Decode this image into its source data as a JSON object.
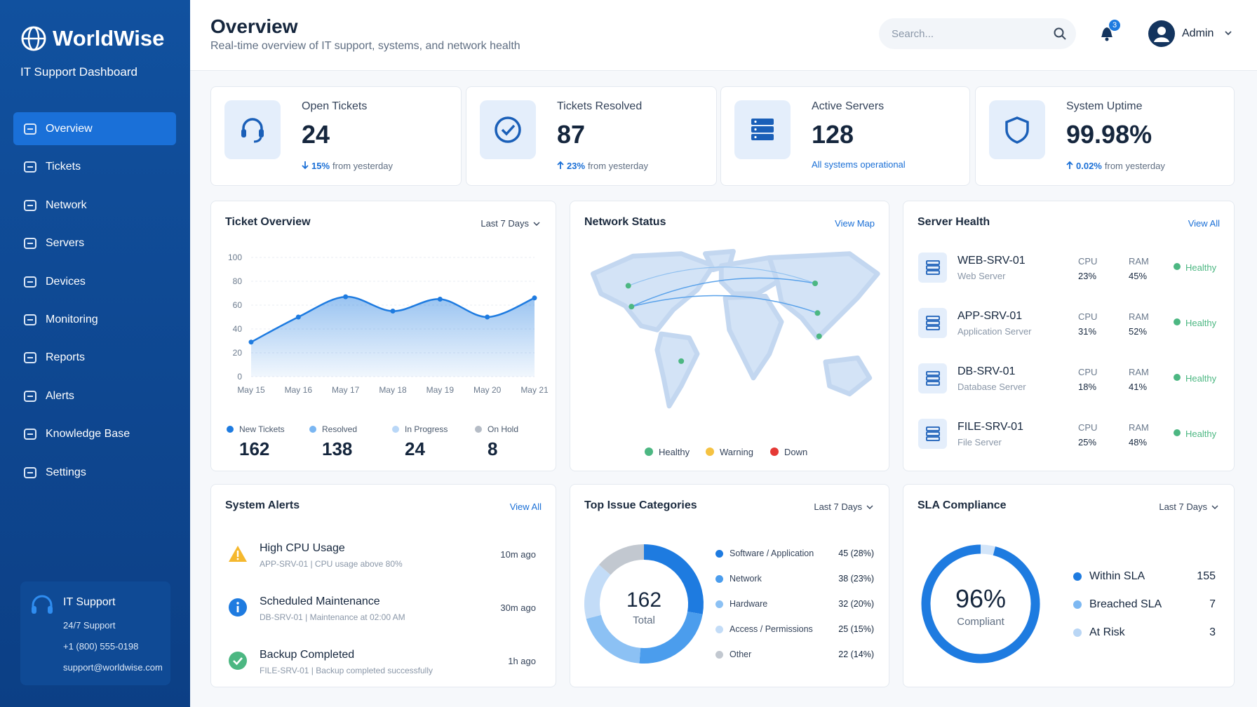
{
  "sidebar": {
    "brand": "WorldWise",
    "subtitle": "IT Support Dashboard",
    "nav": [
      {
        "label": "Overview",
        "active": true
      },
      {
        "label": "Tickets"
      },
      {
        "label": "Network"
      },
      {
        "label": "Servers"
      },
      {
        "label": "Devices"
      },
      {
        "label": "Monitoring"
      },
      {
        "label": "Reports"
      },
      {
        "label": "Alerts"
      },
      {
        "label": "Knowledge Base"
      },
      {
        "label": "Settings"
      }
    ],
    "support": {
      "title": "IT Support",
      "hours": "24/7 Support",
      "phone": "+1 (800) 555-0198",
      "email": "support@worldwise.com"
    }
  },
  "header": {
    "title": "Overview",
    "subtitle": "Real-time overview of IT support, systems, and network health",
    "search_placeholder": "Search...",
    "notifications": 3,
    "user": "Admin"
  },
  "stats": [
    {
      "label": "Open Tickets",
      "value": 24,
      "change": "15%",
      "trend": "down",
      "note": "from yesterday"
    },
    {
      "label": "Tickets Resolved",
      "value": 87,
      "change": "23%",
      "trend": "up",
      "note": "from yesterday"
    },
    {
      "label": "Active Servers",
      "value": 128,
      "note": "All systems operational"
    },
    {
      "label": "System Uptime",
      "value": "99.98%",
      "change": "0.02%",
      "trend": "up",
      "note": "from yesterday"
    }
  ],
  "ticket_overview": {
    "type": "line",
    "title": "Ticket Overview",
    "period": "Last 7 Days",
    "categories": [
      "May 15",
      "May 16",
      "May 17",
      "May 18",
      "May 19",
      "May 20",
      "May 21"
    ],
    "values": [
      29,
      50,
      67,
      55,
      65,
      50,
      66
    ],
    "color": "#1e7be0",
    "ylim": [
      0,
      100
    ],
    "yticks": [
      0,
      20,
      40,
      60,
      80,
      100
    ],
    "grid": true,
    "summary": [
      {
        "name": "New Tickets",
        "value": 162,
        "color": "#1e7be0"
      },
      {
        "name": "Resolved",
        "value": 138,
        "color": "#7ab6f2"
      },
      {
        "name": "In Progress",
        "value": 24,
        "color": "#b9d7f7"
      },
      {
        "name": "On Hold",
        "value": 8,
        "color": "#b5bcc6"
      }
    ]
  },
  "network_status": {
    "title": "Network Status",
    "link": "View Map",
    "legend": [
      {
        "name": "Healthy",
        "color": "#4cb782"
      },
      {
        "name": "Warning",
        "color": "#f5c242"
      },
      {
        "name": "Down",
        "color": "#e53935"
      }
    ]
  },
  "server_health": {
    "title": "Server Health",
    "link": "View All",
    "cpu_label": "CPU",
    "ram_label": "RAM",
    "servers": [
      {
        "name": "WEB-SRV-01",
        "role": "Web Server",
        "cpu": "23%",
        "ram": "45%",
        "status": "Healthy"
      },
      {
        "name": "APP-SRV-01",
        "role": "Application Server",
        "cpu": "31%",
        "ram": "52%",
        "status": "Healthy"
      },
      {
        "name": "DB-SRV-01",
        "role": "Database Server",
        "cpu": "18%",
        "ram": "41%",
        "status": "Healthy"
      },
      {
        "name": "FILE-SRV-01",
        "role": "File Server",
        "cpu": "25%",
        "ram": "48%",
        "status": "Healthy"
      }
    ]
  },
  "system_alerts": {
    "title": "System Alerts",
    "link": "View All",
    "alerts": [
      {
        "level": "warning",
        "title": "High CPU Usage",
        "detail": "APP-SRV-01 | CPU usage above 80%",
        "time": "10m ago"
      },
      {
        "level": "info",
        "title": "Scheduled Maintenance",
        "detail": "DB-SRV-01 | Maintenance at 02:00 AM",
        "time": "30m ago"
      },
      {
        "level": "success",
        "title": "Backup Completed",
        "detail": "FILE-SRV-01 | Backup completed successfully",
        "time": "1h ago"
      }
    ]
  },
  "top_issues": {
    "type": "pie",
    "title": "Top Issue Categories",
    "period": "Last 7 Days",
    "total": 162,
    "total_label": "Total",
    "categories": [
      "Software / Application",
      "Network",
      "Hardware",
      "Access / Permissions",
      "Other"
    ],
    "values": [
      45,
      38,
      32,
      25,
      22
    ],
    "value_labels": [
      "45 (28%)",
      "38 (23%)",
      "32 (20%)",
      "25 (15%)",
      "22 (14%)"
    ],
    "colors": [
      "#1e7be0",
      "#4b9ded",
      "#8cc1f4",
      "#c3dcf7",
      "#c2c8d0"
    ]
  },
  "sla": {
    "type": "pie",
    "title": "SLA Compliance",
    "period": "Last 7 Days",
    "percent": {
      "value": 96,
      "label": "96%"
    },
    "caption": "Compliant",
    "categories": [
      "Within SLA",
      "Breached SLA",
      "At Risk"
    ],
    "values": [
      155,
      7,
      3
    ],
    "colors": [
      "#1e7be0",
      "#7db8f2",
      "#b9d6f5"
    ],
    "track_color": "#d3e5f9"
  }
}
